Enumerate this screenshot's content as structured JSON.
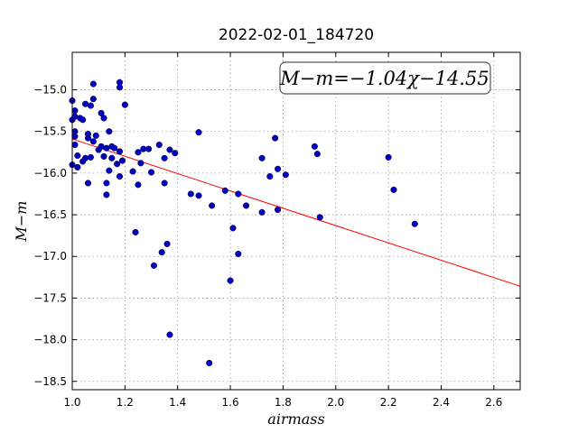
{
  "chart_data": {
    "type": "scatter",
    "title": "2022-02-01_184720",
    "xlabel": "airmass",
    "ylabel": "M−m",
    "xlim": [
      1.0,
      2.7
    ],
    "ylim": [
      -18.6,
      -14.55
    ],
    "x_ticks": [
      1.0,
      1.2,
      1.4,
      1.6,
      1.8,
      2.0,
      2.2,
      2.4,
      2.6
    ],
    "y_ticks": [
      -15.0,
      -15.5,
      -16.0,
      -16.5,
      -17.0,
      -17.5,
      -18.0,
      -18.5
    ],
    "x_tick_labels": [
      "1.0",
      "1.2",
      "1.4",
      "1.6",
      "1.8",
      "2.0",
      "2.2",
      "2.4",
      "2.6"
    ],
    "y_tick_labels": [
      "−15.0",
      "−15.5",
      "−16.0",
      "−16.5",
      "−17.0",
      "−17.5",
      "−18.0",
      "−18.5"
    ],
    "grid": true,
    "annotation": "M−m=−1.04χ−14.55",
    "colors": {
      "points": "#0000bf",
      "fit_line": "#ff0000",
      "grid": "#9a9a9a"
    },
    "points": [
      {
        "x": 1.0,
        "y": -15.13
      },
      {
        "x": 1.0,
        "y": -15.36
      },
      {
        "x": 1.0,
        "y": -15.9
      },
      {
        "x": 1.01,
        "y": -15.25
      },
      {
        "x": 1.01,
        "y": -15.32
      },
      {
        "x": 1.01,
        "y": -15.5
      },
      {
        "x": 1.01,
        "y": -15.56
      },
      {
        "x": 1.01,
        "y": -15.66
      },
      {
        "x": 1.02,
        "y": -15.93
      },
      {
        "x": 1.02,
        "y": -15.79
      },
      {
        "x": 1.03,
        "y": -15.34
      },
      {
        "x": 1.04,
        "y": -15.36
      },
      {
        "x": 1.04,
        "y": -15.86
      },
      {
        "x": 1.05,
        "y": -15.82
      },
      {
        "x": 1.05,
        "y": -15.17
      },
      {
        "x": 1.06,
        "y": -15.53
      },
      {
        "x": 1.06,
        "y": -15.58
      },
      {
        "x": 1.06,
        "y": -16.12
      },
      {
        "x": 1.07,
        "y": -15.19
      },
      {
        "x": 1.07,
        "y": -15.81
      },
      {
        "x": 1.08,
        "y": -15.11
      },
      {
        "x": 1.08,
        "y": -14.93
      },
      {
        "x": 1.08,
        "y": -15.62
      },
      {
        "x": 1.09,
        "y": -15.55
      },
      {
        "x": 1.1,
        "y": -15.72
      },
      {
        "x": 1.11,
        "y": -15.28
      },
      {
        "x": 1.11,
        "y": -15.68
      },
      {
        "x": 1.12,
        "y": -15.8
      },
      {
        "x": 1.12,
        "y": -15.34
      },
      {
        "x": 1.13,
        "y": -15.7
      },
      {
        "x": 1.13,
        "y": -16.12
      },
      {
        "x": 1.13,
        "y": -16.26
      },
      {
        "x": 1.14,
        "y": -15.5
      },
      {
        "x": 1.14,
        "y": -15.97
      },
      {
        "x": 1.15,
        "y": -15.68
      },
      {
        "x": 1.15,
        "y": -15.82
      },
      {
        "x": 1.16,
        "y": -15.7
      },
      {
        "x": 1.17,
        "y": -15.89
      },
      {
        "x": 1.18,
        "y": -14.91
      },
      {
        "x": 1.18,
        "y": -14.97
      },
      {
        "x": 1.18,
        "y": -15.74
      },
      {
        "x": 1.18,
        "y": -16.04
      },
      {
        "x": 1.19,
        "y": -15.85
      },
      {
        "x": 1.2,
        "y": -15.18
      },
      {
        "x": 1.23,
        "y": -15.98
      },
      {
        "x": 1.24,
        "y": -16.71
      },
      {
        "x": 1.25,
        "y": -16.14
      },
      {
        "x": 1.25,
        "y": -15.75
      },
      {
        "x": 1.26,
        "y": -15.88
      },
      {
        "x": 1.27,
        "y": -15.71
      },
      {
        "x": 1.29,
        "y": -15.71
      },
      {
        "x": 1.3,
        "y": -15.99
      },
      {
        "x": 1.31,
        "y": -17.11
      },
      {
        "x": 1.33,
        "y": -15.66
      },
      {
        "x": 1.34,
        "y": -16.95
      },
      {
        "x": 1.35,
        "y": -16.12
      },
      {
        "x": 1.35,
        "y": -15.82
      },
      {
        "x": 1.36,
        "y": -16.85
      },
      {
        "x": 1.37,
        "y": -15.72
      },
      {
        "x": 1.37,
        "y": -17.94
      },
      {
        "x": 1.39,
        "y": -15.76
      },
      {
        "x": 1.45,
        "y": -16.25
      },
      {
        "x": 1.48,
        "y": -15.51
      },
      {
        "x": 1.48,
        "y": -16.27
      },
      {
        "x": 1.52,
        "y": -18.28
      },
      {
        "x": 1.53,
        "y": -16.39
      },
      {
        "x": 1.58,
        "y": -16.21
      },
      {
        "x": 1.6,
        "y": -17.29
      },
      {
        "x": 1.61,
        "y": -16.66
      },
      {
        "x": 1.63,
        "y": -16.97
      },
      {
        "x": 1.63,
        "y": -16.25
      },
      {
        "x": 1.66,
        "y": -16.39
      },
      {
        "x": 1.72,
        "y": -15.82
      },
      {
        "x": 1.72,
        "y": -16.47
      },
      {
        "x": 1.75,
        "y": -16.04
      },
      {
        "x": 1.77,
        "y": -15.58
      },
      {
        "x": 1.78,
        "y": -15.95
      },
      {
        "x": 1.78,
        "y": -16.44
      },
      {
        "x": 1.81,
        "y": -16.02
      },
      {
        "x": 1.92,
        "y": -15.68
      },
      {
        "x": 1.93,
        "y": -15.77
      },
      {
        "x": 1.94,
        "y": -16.53
      },
      {
        "x": 2.2,
        "y": -15.81
      },
      {
        "x": 2.22,
        "y": -16.2
      },
      {
        "x": 2.3,
        "y": -16.61
      }
    ],
    "fit": {
      "slope": -1.04,
      "intercept": -14.55
    }
  }
}
